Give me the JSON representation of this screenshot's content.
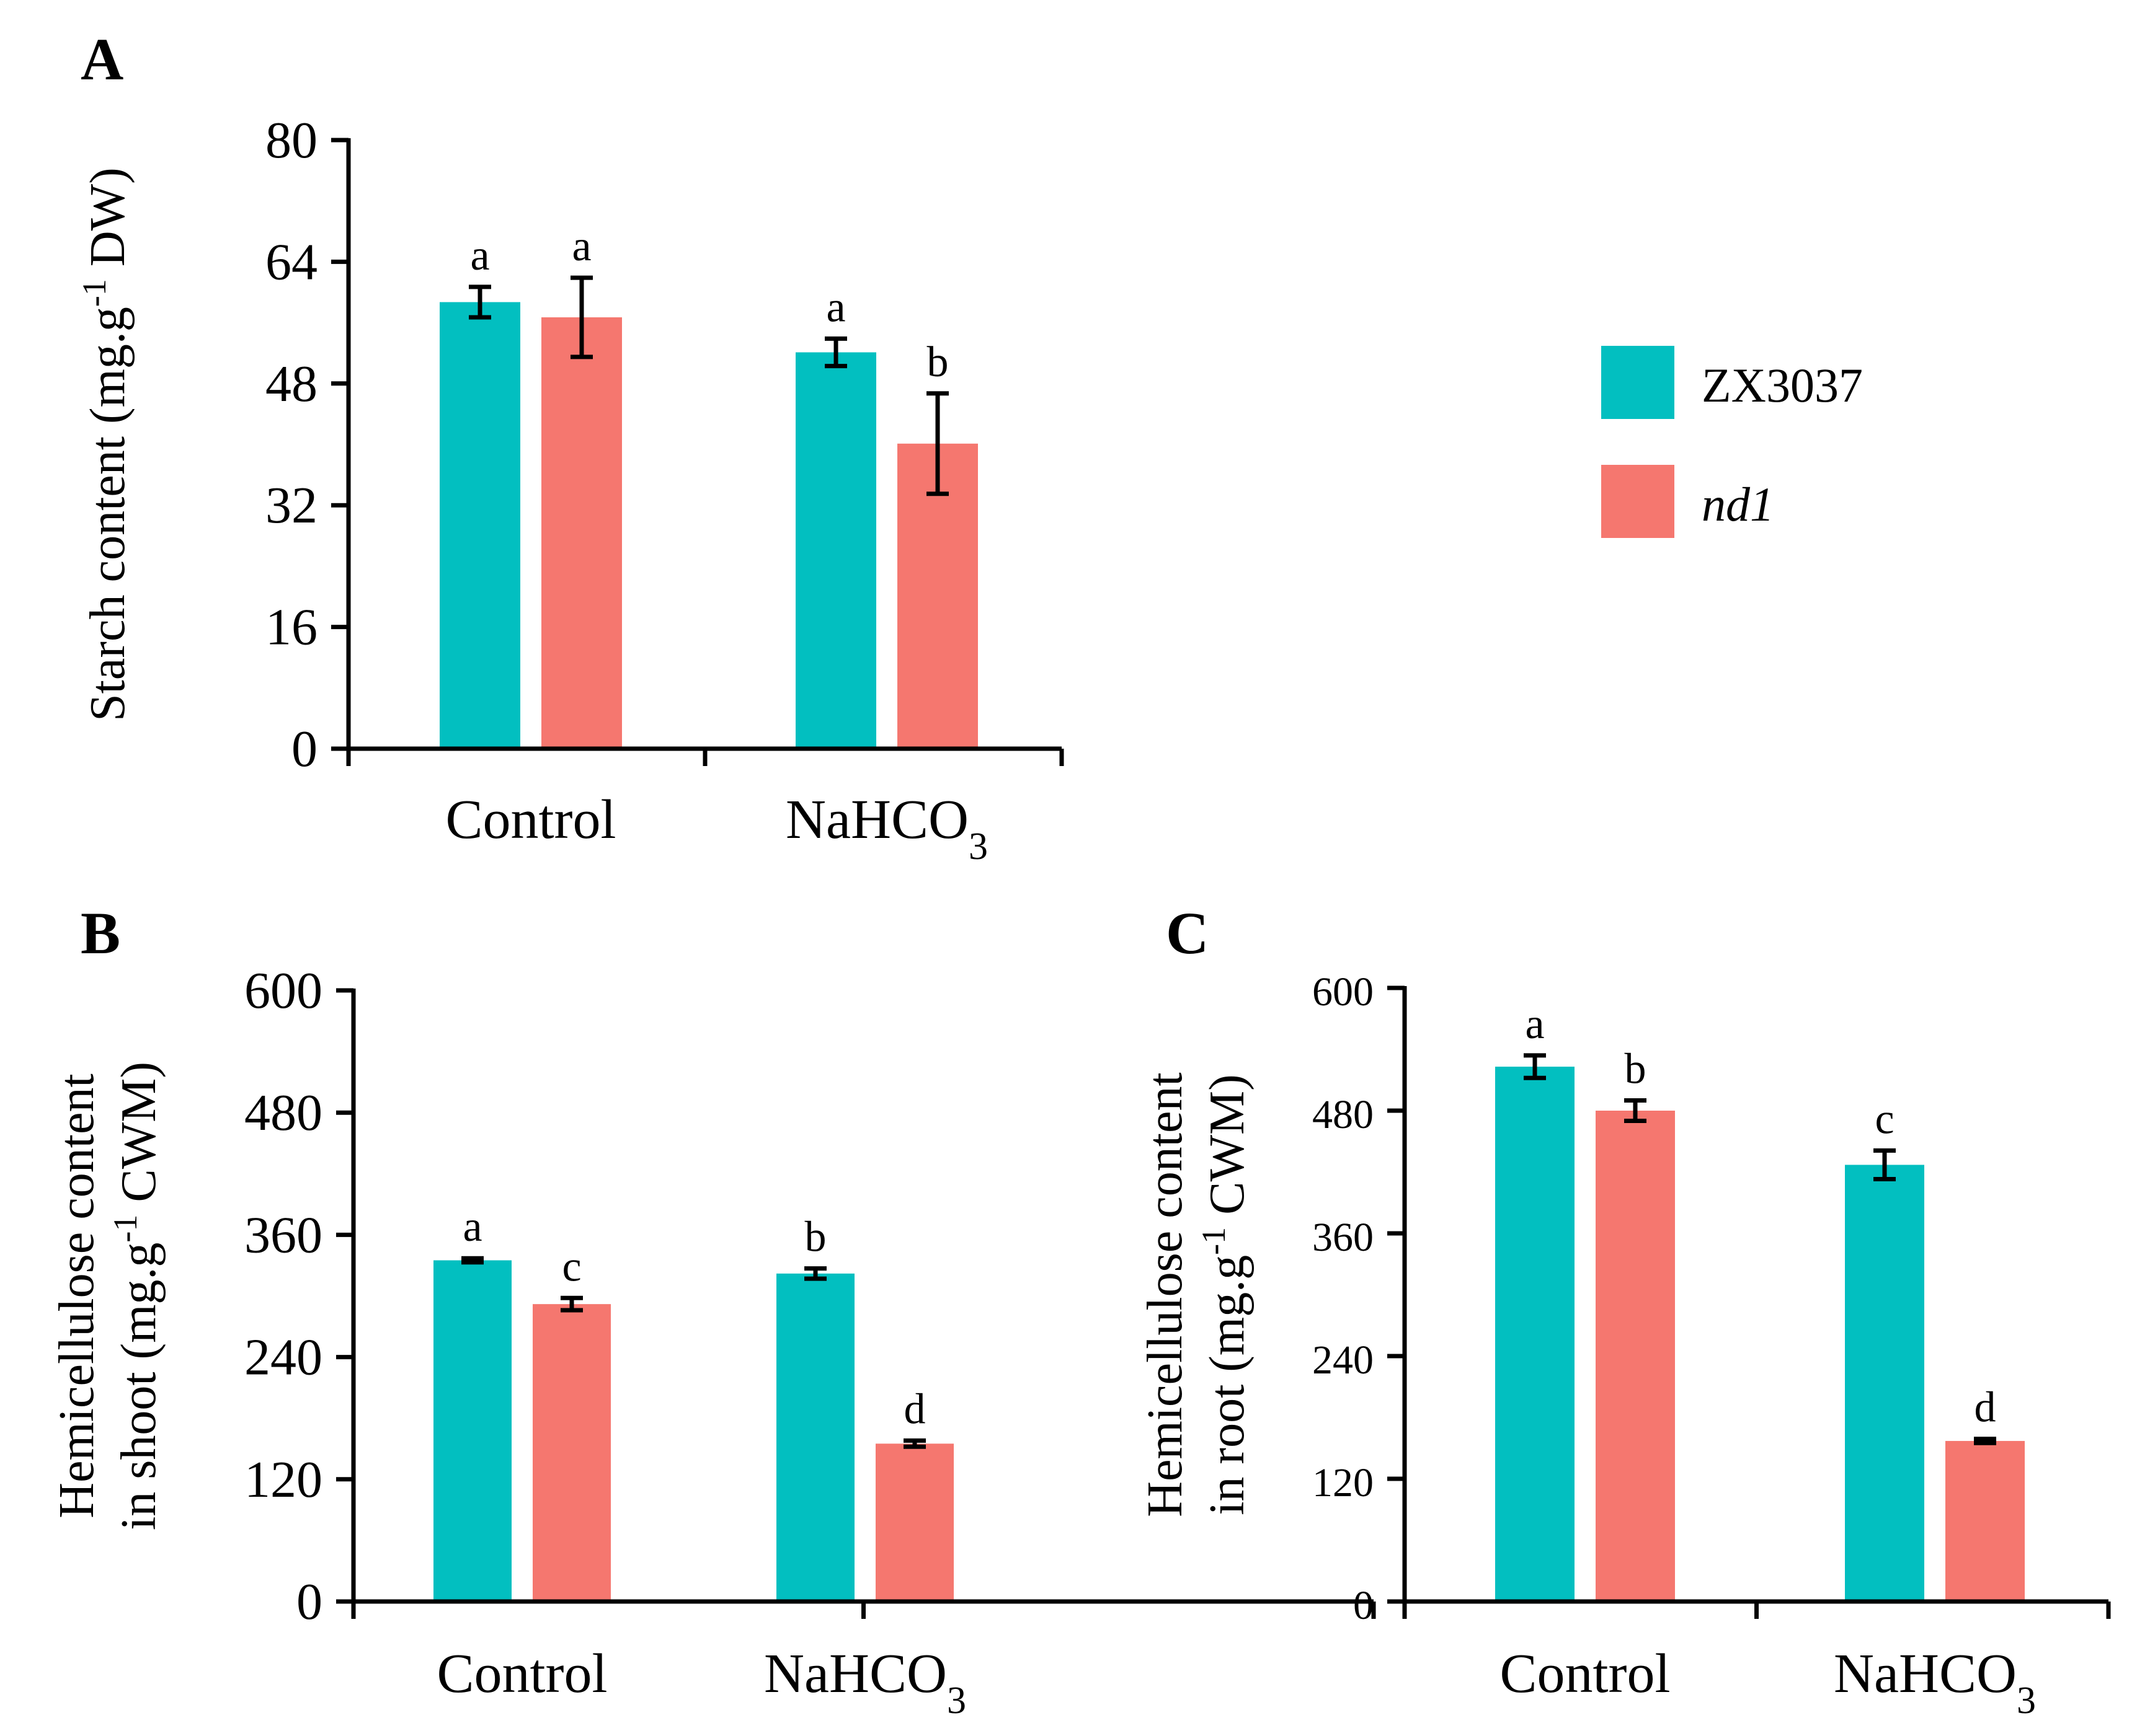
{
  "legend": [
    {
      "name": "ZX3037",
      "italic": false,
      "color": "#02BFC0"
    },
    {
      "name": "nd1",
      "italic": true,
      "color": "#F5776F"
    }
  ],
  "chart_data": [
    {
      "id": "A",
      "panel_label": "A",
      "type": "bar",
      "title": "",
      "xlabel": "",
      "ylabel": "Starch content (mg.g-1 DW)",
      "ylabel_parts": {
        "pre": "Starch content (mg.g",
        "sup": "-1",
        "post": " DW)"
      },
      "categories": [
        "Control",
        "NaHCO3"
      ],
      "category_parts": [
        {
          "main": "Control",
          "sub": ""
        },
        {
          "main": "NaHCO",
          "sub": "3"
        }
      ],
      "ylim": [
        0,
        80
      ],
      "yticks": [
        0,
        16,
        32,
        48,
        64,
        80
      ],
      "grid": false,
      "legend_position": "right",
      "series": [
        {
          "name": "ZX3037",
          "color": "#02BFC0",
          "values": [
            58.7,
            52.1
          ],
          "errors": [
            2.0,
            1.8
          ],
          "letters": [
            "a",
            "a"
          ]
        },
        {
          "name": "nd1",
          "color": "#F5776F",
          "values": [
            56.7,
            40.1
          ],
          "errors": [
            5.2,
            6.6
          ],
          "letters": [
            "a",
            "b"
          ]
        }
      ]
    },
    {
      "id": "B",
      "panel_label": "B",
      "type": "bar",
      "title": "",
      "xlabel": "",
      "ylabel": "Hemicellulose content in shoot (mg.g-1 CWM)",
      "ylabel_lines": [
        {
          "pre": "Hemicellulose content",
          "sup": "",
          "post": ""
        },
        {
          "pre": "in shoot (mg.g",
          "sup": "-1",
          "post": " CWM)"
        }
      ],
      "categories": [
        "Control",
        "NaHCO3"
      ],
      "category_parts": [
        {
          "main": "Control",
          "sub": ""
        },
        {
          "main": "NaHCO",
          "sub": "3"
        }
      ],
      "ylim": [
        0,
        600
      ],
      "yticks": [
        0,
        120,
        240,
        360,
        480,
        600
      ],
      "grid": false,
      "series": [
        {
          "name": "ZX3037",
          "color": "#02BFC0",
          "values": [
            335,
            322
          ],
          "errors": [
            2,
            5
          ],
          "letters": [
            "a",
            "b"
          ]
        },
        {
          "name": "nd1",
          "color": "#F5776F",
          "values": [
            292,
            155
          ],
          "errors": [
            6,
            3
          ],
          "letters": [
            "c",
            "d"
          ]
        }
      ]
    },
    {
      "id": "C",
      "panel_label": "C",
      "type": "bar",
      "title": "",
      "xlabel": "",
      "ylabel": "Hemicellulose content in root (mg.g-1 CWM)",
      "ylabel_lines": [
        {
          "pre": "Hemicellulose content",
          "sup": "",
          "post": ""
        },
        {
          "pre": "in root (mg.g",
          "sup": "-1",
          "post": " CWM)"
        }
      ],
      "categories": [
        "Control",
        "NaHCO3"
      ],
      "category_parts": [
        {
          "main": "Control",
          "sub": ""
        },
        {
          "main": "NaHCO",
          "sub": "3"
        }
      ],
      "ylim": [
        0,
        600
      ],
      "yticks": [
        0,
        120,
        240,
        360,
        480,
        600
      ],
      "grid": false,
      "series": [
        {
          "name": "ZX3037",
          "color": "#02BFC0",
          "values": [
            523,
            427
          ],
          "errors": [
            11,
            14
          ],
          "letters": [
            "a",
            "c"
          ]
        },
        {
          "name": "nd1",
          "color": "#F5776F",
          "values": [
            480,
            157
          ],
          "errors": [
            10,
            2
          ],
          "letters": [
            "b",
            "d"
          ]
        }
      ]
    }
  ]
}
